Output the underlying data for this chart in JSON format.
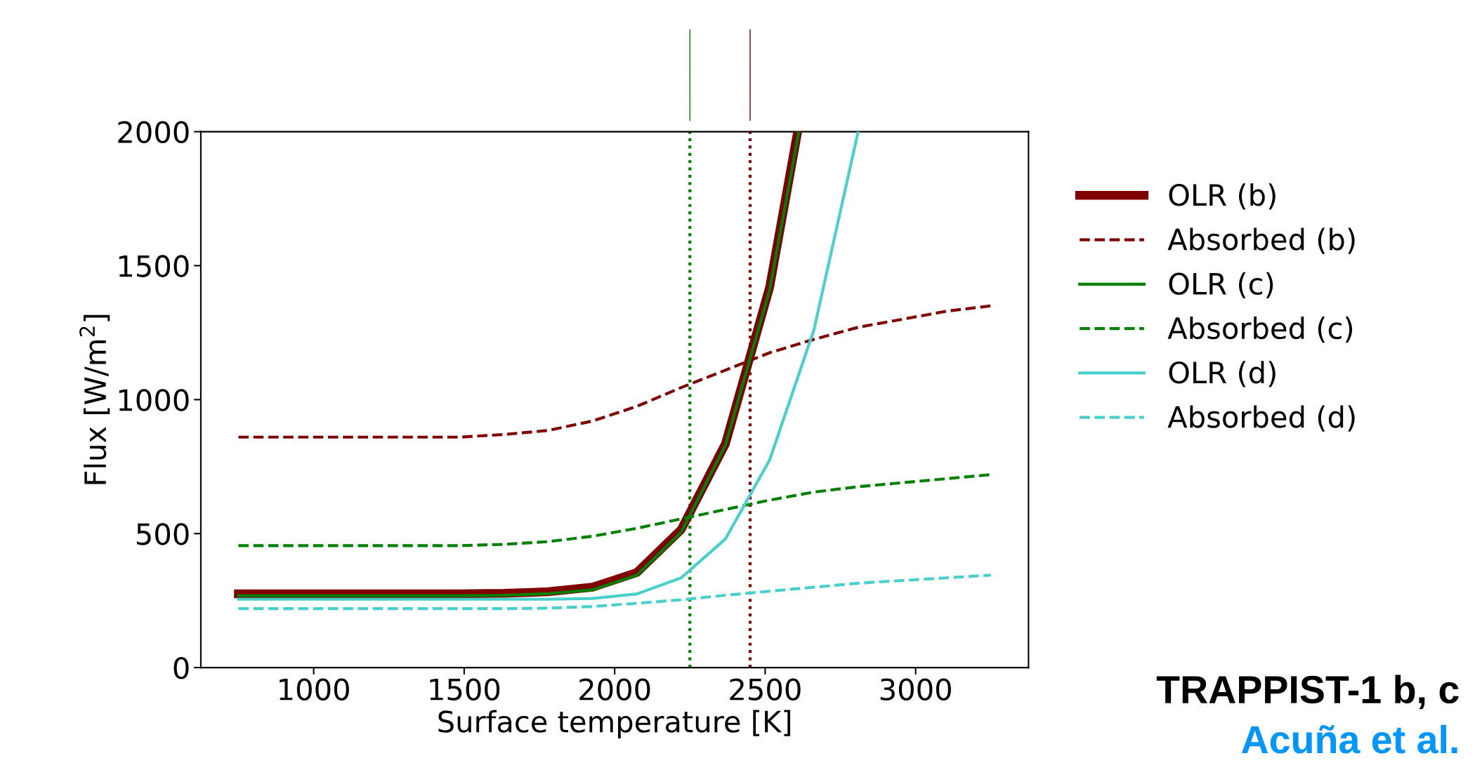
{
  "chart_data": {
    "type": "line",
    "xlabel": "Surface temperature [K]",
    "ylabel": "Flux [W/m$^{2}$]",
    "x": [
      750,
      897,
      1044,
      1191,
      1338,
      1485,
      1632,
      1779,
      1926,
      2074,
      2221,
      2368,
      2515,
      2662,
      2809,
      2956,
      3103,
      3250
    ],
    "series": [
      {
        "name": "OLR (b)",
        "color": "#800000",
        "line_style": "solid",
        "x": [
          750,
          897,
          1044,
          1191,
          1338,
          1485,
          1632,
          1779,
          1926,
          2074,
          2221,
          2368,
          2515,
          2608
        ],
        "values": [
          275,
          275,
          275,
          275,
          275,
          275,
          277,
          283,
          300,
          355,
          515,
          835,
          1420,
          2000
        ]
      },
      {
        "name": "Absorbed (b)",
        "color": "#800000",
        "line_style": "dashed",
        "values": [
          860,
          860,
          860,
          860,
          860,
          860,
          870,
          885,
          920,
          975,
          1045,
          1110,
          1175,
          1225,
          1270,
          1300,
          1330,
          1350
        ]
      },
      {
        "name": "OLR (c)",
        "color": "#008000",
        "line_style": "solid",
        "x": [
          750,
          897,
          1044,
          1191,
          1338,
          1485,
          1632,
          1779,
          1926,
          2074,
          2221,
          2368,
          2515,
          2612
        ],
        "values": [
          268,
          268,
          268,
          268,
          268,
          268,
          270,
          276,
          290,
          345,
          505,
          830,
          1410,
          2000
        ]
      },
      {
        "name": "Absorbed (c)",
        "color": "#008000",
        "line_style": "dashed",
        "values": [
          455,
          455,
          455,
          455,
          455,
          455,
          460,
          470,
          490,
          520,
          555,
          590,
          625,
          655,
          675,
          690,
          705,
          720
        ]
      },
      {
        "name": "OLR (d)",
        "color": "#48d1cc",
        "line_style": "solid",
        "x": [
          750,
          897,
          1044,
          1191,
          1338,
          1485,
          1632,
          1779,
          1926,
          2074,
          2221,
          2368,
          2515,
          2662,
          2809
        ],
        "values": [
          255,
          255,
          255,
          255,
          255,
          255,
          255,
          255,
          258,
          275,
          335,
          480,
          775,
          1260,
          2000
        ]
      },
      {
        "name": "Absorbed (d)",
        "color": "#48d1cc",
        "line_style": "dashed",
        "values": [
          220,
          220,
          220,
          220,
          220,
          220,
          220,
          222,
          228,
          240,
          253,
          270,
          285,
          300,
          315,
          325,
          335,
          345
        ]
      }
    ],
    "ref_lines": [
      {
        "axis": "x",
        "value": 2250,
        "color": "#008000",
        "line_style": "dotted"
      },
      {
        "axis": "x",
        "value": 2450,
        "color": "#800000",
        "line_style": "dotted"
      }
    ],
    "xlim": [
      625,
      3375
    ],
    "xticks": [
      1000,
      1500,
      2000,
      2500,
      3000
    ],
    "ylim": [
      0,
      2000
    ],
    "yticks": [
      0,
      500,
      1000,
      1500,
      2000
    ],
    "grid": false,
    "legend": "right",
    "annotations": [
      "TRAPPIST-1 b, c",
      "Acuña et al."
    ]
  }
}
